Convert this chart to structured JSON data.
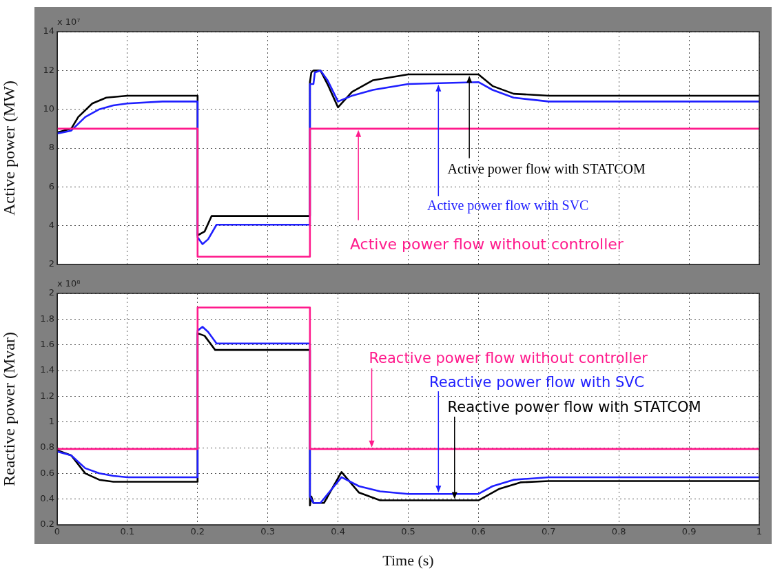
{
  "chart_data": [
    {
      "type": "line",
      "ylabel": "Active power (MW)",
      "annotations": [
        "x 10⁷"
      ],
      "xlim": [
        0,
        1
      ],
      "xticks": [
        0,
        0.1,
        0.2,
        0.3,
        0.4,
        0.5,
        0.6,
        0.7,
        0.8,
        0.9,
        1
      ],
      "ylim": [
        2,
        14
      ],
      "yticks": [
        2,
        4,
        6,
        8,
        10,
        12,
        14
      ],
      "tick_labels": "y",
      "grid": true,
      "marker": "none",
      "series": [
        {
          "name": "Active power flow without controller",
          "color": "#ff1a8c",
          "x": [
            0,
            0.2,
            0.2,
            0.36,
            0.36,
            1
          ],
          "values": [
            9,
            9,
            2.4,
            2.4,
            9,
            9
          ]
        },
        {
          "name": "Active power flow with SVC",
          "color": "#1f1fff",
          "x": [
            0,
            0.02,
            0.04,
            0.06,
            0.08,
            0.1,
            0.15,
            0.2,
            0.2,
            0.207,
            0.215,
            0.227,
            0.36,
            0.36,
            0.365,
            0.367,
            0.375,
            0.385,
            0.4,
            0.42,
            0.45,
            0.5,
            0.6,
            0.62,
            0.65,
            0.7,
            1
          ],
          "values": [
            8.75,
            8.9,
            9.6,
            10,
            10.2,
            10.3,
            10.4,
            10.4,
            3.4,
            3.05,
            3.3,
            4.05,
            4.05,
            11.3,
            11.3,
            11.9,
            12,
            11.5,
            10.4,
            10.7,
            11,
            11.3,
            11.4,
            11,
            10.6,
            10.4,
            10.4
          ]
        },
        {
          "name": "Active power flow with STATCOM",
          "color": "#000000",
          "x": [
            0,
            0.02,
            0.03,
            0.05,
            0.07,
            0.1,
            0.2,
            0.2,
            0.21,
            0.22,
            0.36,
            0.36,
            0.362,
            0.365,
            0.375,
            0.385,
            0.4,
            0.42,
            0.45,
            0.5,
            0.6,
            0.62,
            0.65,
            0.7,
            1
          ],
          "values": [
            8.8,
            9,
            9.6,
            10.3,
            10.6,
            10.7,
            10.7,
            3.5,
            3.7,
            4.5,
            4.5,
            11.4,
            11.9,
            12,
            12,
            11.3,
            10.1,
            10.9,
            11.5,
            11.8,
            11.8,
            11.2,
            10.8,
            10.7,
            10.7
          ]
        }
      ]
    },
    {
      "type": "line",
      "xlabel": "Time (s)",
      "ylabel": "Reactive power (Mvar)",
      "annotations": [
        "x 10⁸"
      ],
      "xlim": [
        0,
        1
      ],
      "xticks": [
        0,
        0.1,
        0.2,
        0.3,
        0.4,
        0.5,
        0.6,
        0.7,
        0.8,
        0.9,
        1
      ],
      "ylim": [
        0.2,
        2
      ],
      "yticks": [
        0.2,
        0.4,
        0.6,
        0.8,
        1,
        1.2,
        1.4,
        1.6,
        1.8,
        2
      ],
      "grid": true,
      "marker": "none",
      "series": [
        {
          "name": "Reactive power flow without controller",
          "color": "#ff1a8c",
          "x": [
            0,
            0.2,
            0.2,
            0.36,
            0.36,
            1
          ],
          "values": [
            0.79,
            0.79,
            1.89,
            1.89,
            0.79,
            0.79
          ]
        },
        {
          "name": "Reactive power flow with SVC",
          "color": "#1f1fff",
          "x": [
            0,
            0.02,
            0.04,
            0.06,
            0.08,
            0.1,
            0.2,
            0.2,
            0.207,
            0.215,
            0.227,
            0.36,
            0.36,
            0.365,
            0.375,
            0.405,
            0.43,
            0.46,
            0.5,
            0.6,
            0.62,
            0.65,
            0.7,
            1
          ],
          "values": [
            0.77,
            0.74,
            0.64,
            0.6,
            0.58,
            0.57,
            0.57,
            1.71,
            1.74,
            1.7,
            1.61,
            1.61,
            0.42,
            0.37,
            0.37,
            0.57,
            0.5,
            0.46,
            0.44,
            0.44,
            0.5,
            0.55,
            0.57,
            0.57
          ]
        },
        {
          "name": "Reactive power flow with STATCOM",
          "color": "#000000",
          "x": [
            0,
            0.02,
            0.04,
            0.06,
            0.08,
            0.2,
            0.2,
            0.21,
            0.225,
            0.36,
            0.36,
            0.362,
            0.365,
            0.38,
            0.405,
            0.43,
            0.46,
            0.6,
            0.63,
            0.66,
            0.7,
            1
          ],
          "values": [
            0.78,
            0.74,
            0.6,
            0.55,
            0.535,
            0.535,
            1.69,
            1.67,
            1.56,
            1.56,
            0.35,
            0.42,
            0.37,
            0.37,
            0.61,
            0.45,
            0.39,
            0.39,
            0.48,
            0.53,
            0.54,
            0.54
          ]
        }
      ]
    }
  ]
}
